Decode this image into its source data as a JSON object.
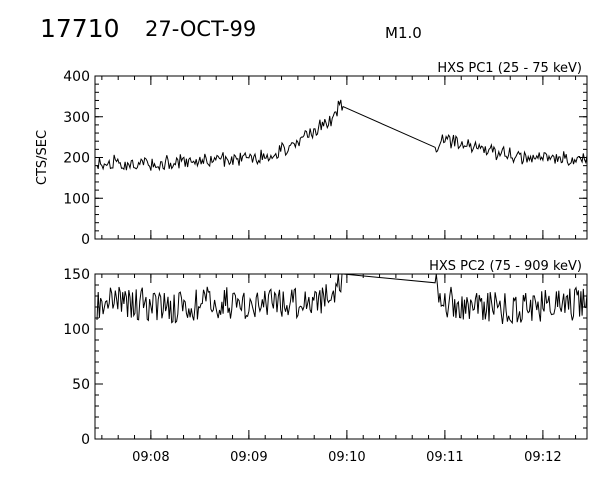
{
  "header": {
    "event_id": "17710",
    "date": "27-OCT-99",
    "flare_class": "M1.0"
  },
  "chart_data": [
    {
      "type": "line",
      "title": "HXS PC1 (25 - 75 keV)",
      "ylabel": "CTS/SEC",
      "xlabel": "",
      "x_unit": "minutes since 09:00 UT",
      "xlim": [
        7.43,
        12.45
      ],
      "ylim": [
        0,
        400
      ],
      "yticks": [
        0,
        100,
        200,
        300,
        400
      ],
      "xticks": [
        "09:08",
        "09:09",
        "09:10",
        "09:11",
        "09:12"
      ],
      "grid": false,
      "series": [
        {
          "x": [
            7.45,
            7.6,
            7.8,
            8.0,
            8.2,
            8.4,
            8.6,
            8.8,
            9.0,
            9.2,
            9.35,
            9.5,
            9.6,
            9.7,
            9.8,
            9.88,
            9.92,
            9.96,
            10.9,
            11.0,
            11.2,
            11.4,
            11.6,
            11.8,
            12.0,
            12.2,
            12.45
          ],
          "y": [
            180,
            190,
            185,
            185,
            190,
            192,
            195,
            195,
            200,
            205,
            220,
            240,
            260,
            270,
            290,
            300,
            330,
            325,
            225,
            245,
            230,
            215,
            210,
            200,
            195,
            200,
            195
          ]
        }
      ]
    },
    {
      "type": "line",
      "title": "HXS PC2 (75 - 909 keV)",
      "ylabel": "",
      "xlabel": "",
      "x_unit": "minutes since 09:00 UT",
      "xlim": [
        7.43,
        12.45
      ],
      "ylim": [
        0,
        150
      ],
      "yticks": [
        0,
        50,
        100,
        150
      ],
      "xticks": [
        "09:08",
        "09:09",
        "09:10",
        "09:11",
        "09:12"
      ],
      "grid": false,
      "series": [
        {
          "x": [
            7.45,
            7.7,
            8.0,
            8.3,
            8.6,
            8.9,
            9.2,
            9.5,
            9.8,
            9.96,
            10.9,
            11.0,
            11.2,
            11.4,
            11.6,
            11.8,
            12.0,
            12.2,
            12.45
          ],
          "y": [
            120,
            125,
            122,
            120,
            124,
            123,
            122,
            125,
            128,
            150,
            142,
            125,
            120,
            122,
            118,
            120,
            122,
            121,
            125
          ]
        }
      ]
    }
  ]
}
